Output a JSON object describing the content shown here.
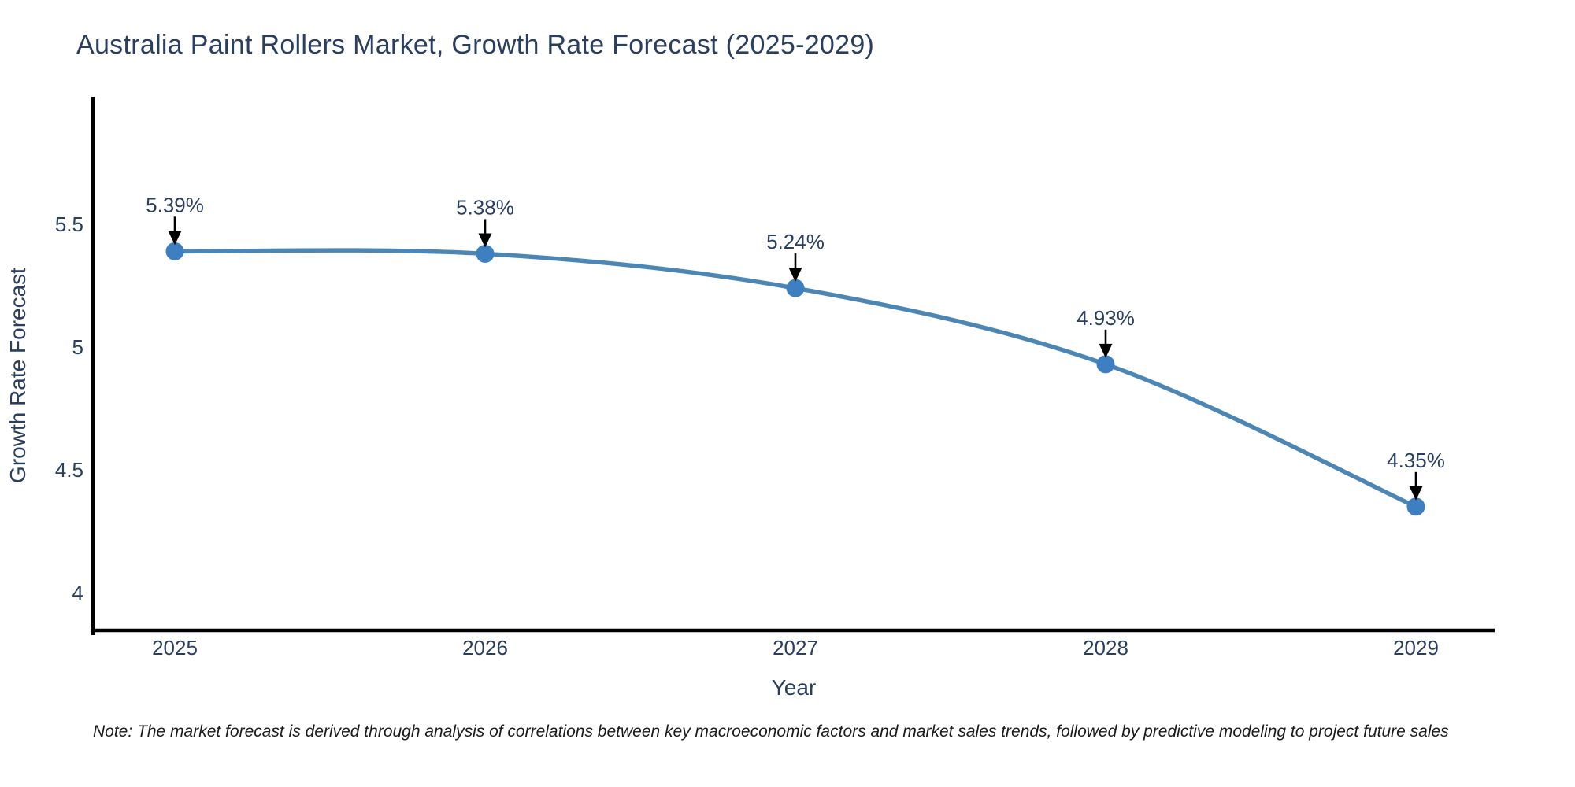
{
  "title": "Australia Paint Rollers Market, Growth Rate Forecast (2025-2029)",
  "footnote": "Note: The market forecast is derived through analysis of correlations between key macroeconomic factors and market sales trends, followed by predictive modeling to project future sales",
  "chart_data": {
    "type": "line",
    "line_shape": "spline",
    "x": [
      2025,
      2026,
      2027,
      2028,
      2029
    ],
    "y": [
      5.39,
      5.38,
      5.24,
      4.93,
      4.35
    ],
    "point_labels": [
      "5.39%",
      "5.38%",
      "5.24%",
      "4.93%",
      "4.35%"
    ],
    "x_tick_labels": [
      "2025",
      "2026",
      "2027",
      "2028",
      "2029"
    ],
    "y_ticks": [
      5.5,
      5,
      4.5,
      4
    ],
    "y_tick_labels": [
      "5.5",
      "5",
      "4.5",
      "4"
    ],
    "xlabel": "Year",
    "ylabel": "Growth Rate Forecast",
    "title": "Australia Paint Rollers Market, Growth Rate Forecast (2025-2029)",
    "xlim": [
      2024.74,
      2029.25
    ],
    "ylim": [
      3.85,
      6.01
    ],
    "grid": false,
    "legend": "none",
    "colors": {
      "line": "#4c86b4",
      "marker": "#3e7fc1",
      "arrow": "#000000",
      "axis_line": "#000000",
      "label_text": "#2a3f5f",
      "note_text": "#1a1a1a",
      "background": "#ffffff"
    }
  }
}
